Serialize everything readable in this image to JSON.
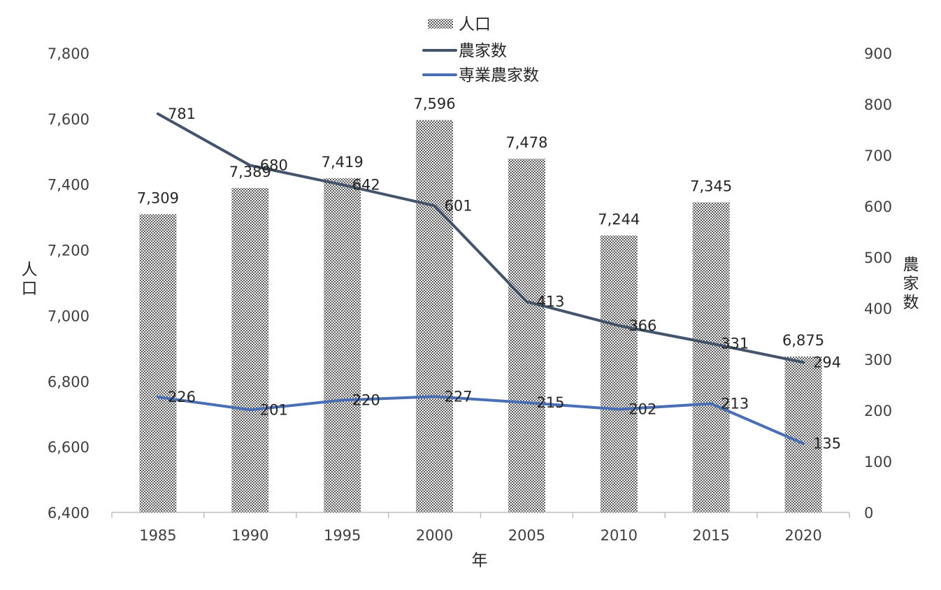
{
  "chart_data": {
    "type": "bar+line",
    "x": [
      "1985",
      "1990",
      "1995",
      "2000",
      "2005",
      "2010",
      "2015",
      "2020"
    ],
    "xlabel": "年",
    "ylabel_left": "人口",
    "ylabel_right": "農家数",
    "ylim_left": [
      6400,
      7800
    ],
    "yticks_left": [
      "6,400",
      "6,600",
      "6,800",
      "7,000",
      "7,200",
      "7,400",
      "7,600",
      "7,800"
    ],
    "ylim_right": [
      0,
      900
    ],
    "yticks_right": [
      "0",
      "100",
      "200",
      "300",
      "400",
      "500",
      "600",
      "700",
      "800",
      "900"
    ],
    "series": [
      {
        "name": "人口",
        "kind": "bar",
        "axis": "left",
        "values": [
          7309,
          7389,
          7419,
          7596,
          7478,
          7244,
          7345,
          6875
        ],
        "labels": [
          "7,309",
          "7,389",
          "7,419",
          "7,596",
          "7,478",
          "7,244",
          "7,345",
          "6,875"
        ]
      },
      {
        "name": "農家数",
        "kind": "line",
        "axis": "right",
        "color": "#44546a",
        "values": [
          781,
          680,
          642,
          601,
          413,
          366,
          331,
          294
        ],
        "labels": [
          "781",
          "680",
          "642",
          "601",
          "413",
          "366",
          "331",
          "294"
        ]
      },
      {
        "name": "専業農家数",
        "kind": "line",
        "axis": "right",
        "color": "#4a6fb5",
        "values": [
          226,
          201,
          220,
          227,
          215,
          202,
          213,
          135
        ],
        "labels": [
          "226",
          "201",
          "220",
          "227",
          "215",
          "202",
          "213",
          "135"
        ]
      }
    ],
    "legend_position": "top-center"
  }
}
